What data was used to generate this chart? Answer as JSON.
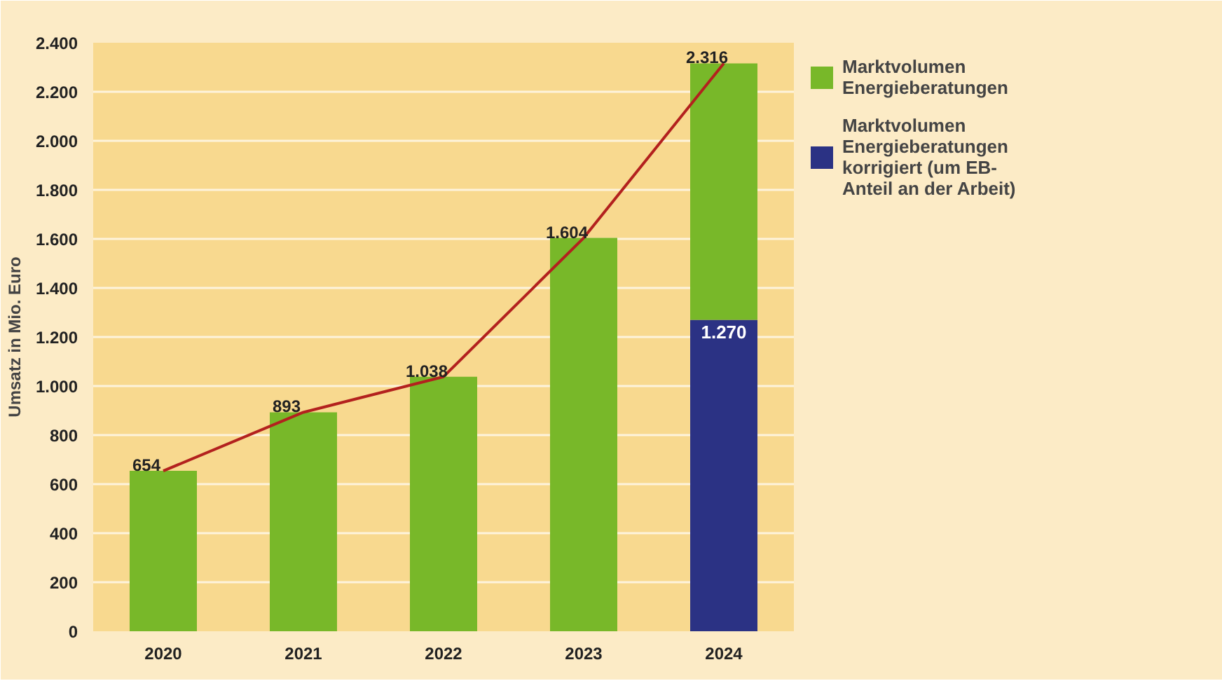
{
  "chart_data": {
    "type": "bar",
    "stacked": true,
    "ylabel": "Umsatz in Mio. Euro",
    "categories": [
      "2020",
      "2021",
      "2022",
      "2023",
      "2024"
    ],
    "ylim": [
      0,
      2400
    ],
    "yticks": [
      0,
      200,
      400,
      600,
      800,
      {
        "value": 1000,
        "label": "1.000"
      },
      {
        "value": 1200,
        "label": "1.200"
      },
      {
        "value": 1400,
        "label": "1.400"
      },
      {
        "value": 1600,
        "label": "1.600"
      },
      {
        "value": 1800,
        "label": "1.800"
      },
      {
        "value": 2000,
        "label": "2.000"
      },
      {
        "value": 2200,
        "label": "2.200"
      },
      {
        "value": 2400,
        "label": "2.400"
      }
    ],
    "grid": "y",
    "legend": "right",
    "series": [
      {
        "name": "Marktvolumen Energieberatungen korrigiert (um EB-Anteil an der Arbeit)",
        "color": "#2b3284",
        "values": [
          null,
          null,
          null,
          null,
          1270
        ],
        "value_labels": [
          null,
          null,
          null,
          null,
          "1.270"
        ]
      },
      {
        "name": "Marktvolumen Energieberatungen",
        "color": "#78b829",
        "values": [
          654,
          893,
          1038,
          1604,
          1046
        ]
      },
      {
        "type": "line",
        "color": "#b3211e",
        "values": [
          654,
          893,
          1038,
          1604,
          2316
        ]
      }
    ],
    "totals": [
      "654",
      "893",
      "1.038",
      "1.604",
      "2.316"
    ]
  }
}
